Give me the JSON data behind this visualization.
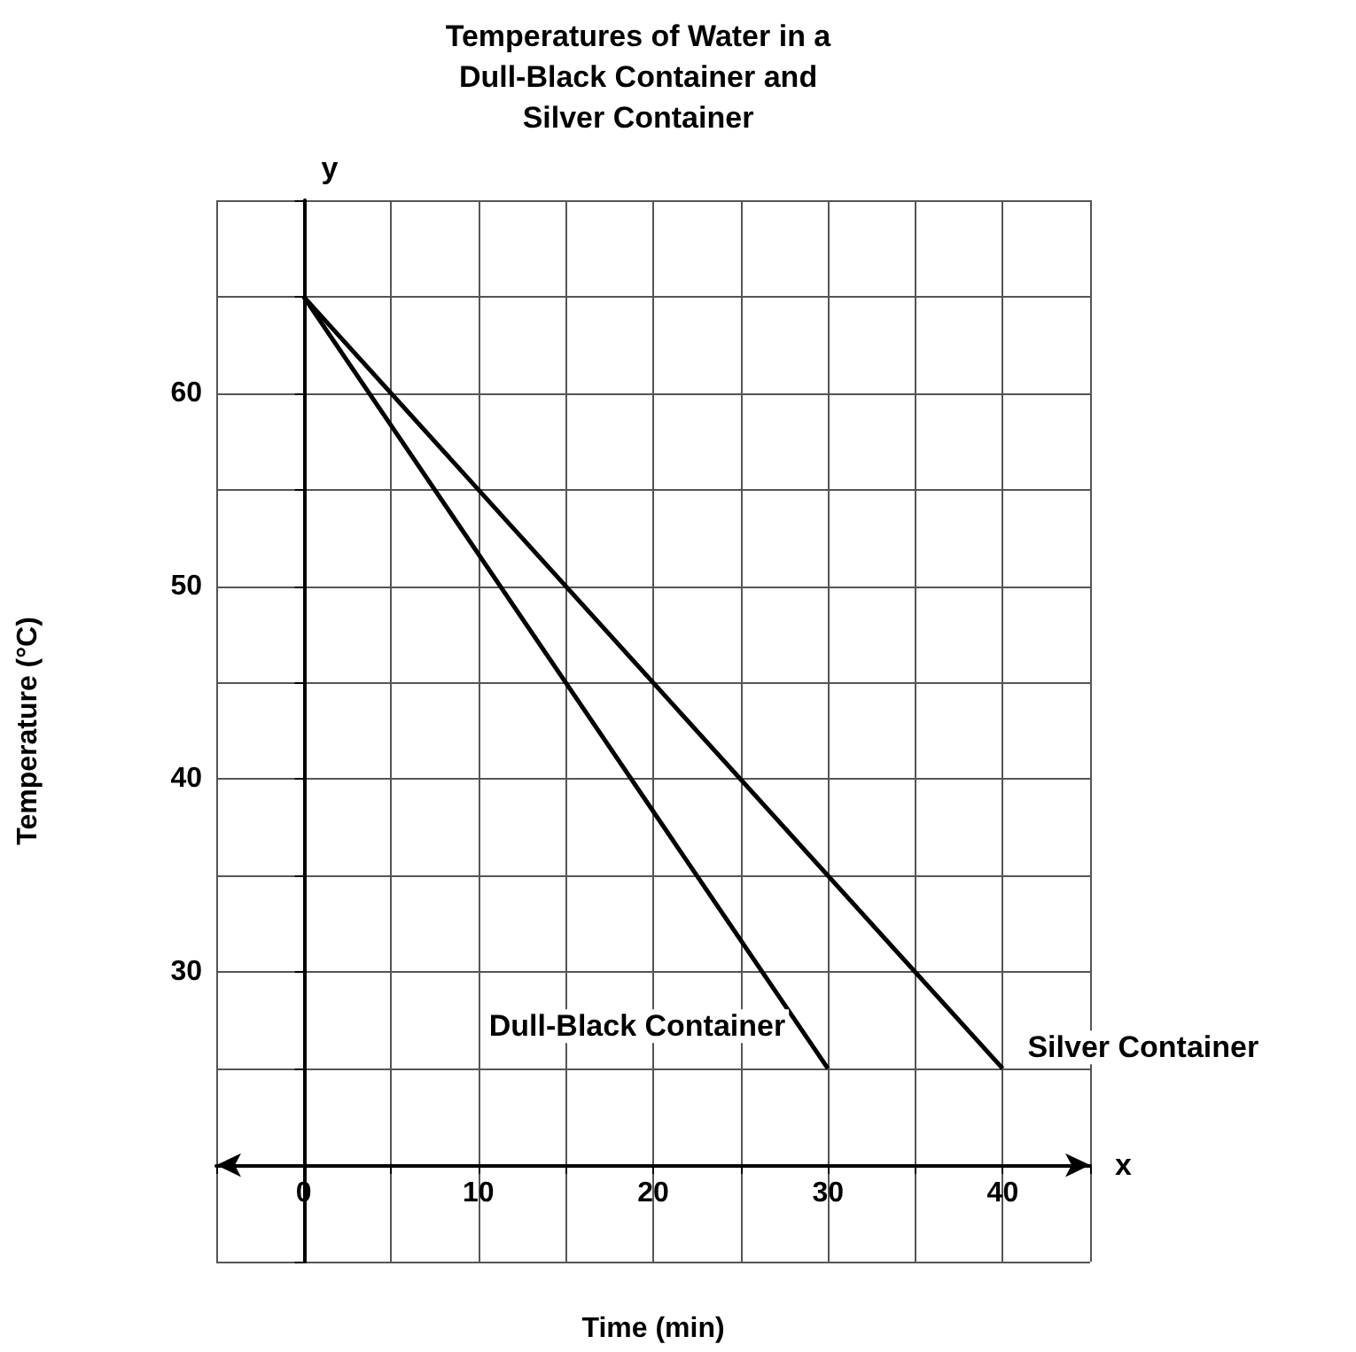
{
  "chart_data": {
    "type": "line",
    "title": "Temperatures of Water in a\nDull-Black Container and\nSilver Container",
    "xlabel": "Time (min)",
    "ylabel": "Temperature (°C)",
    "annotations": [
      "x",
      "y"
    ],
    "xlim": [
      -5,
      45
    ],
    "xticks": [
      {
        "value": -5,
        "label": null
      },
      0,
      {
        "value": 5,
        "label": null
      },
      10,
      {
        "value": 15,
        "label": null
      },
      20,
      {
        "value": 25,
        "label": null
      },
      30,
      {
        "value": 35,
        "label": null
      },
      40,
      {
        "value": 45,
        "label": null
      }
    ],
    "ylim": [
      15,
      70
    ],
    "yticks": [
      {
        "value": 15,
        "label": null
      },
      {
        "value": 20,
        "label": null
      },
      {
        "value": 25,
        "label": null
      },
      30,
      {
        "value": 35,
        "label": null
      },
      40,
      {
        "value": 45,
        "label": null
      },
      50,
      {
        "value": 55,
        "label": null
      },
      60,
      {
        "value": 65,
        "label": null
      },
      {
        "value": 70,
        "label": null
      }
    ],
    "series": [
      {
        "name": "Dull-Black Container",
        "color": "#000000",
        "x": [
          0,
          30
        ],
        "values": [
          65,
          25
        ]
      },
      {
        "name": "Silver Container",
        "color": "#000000",
        "x": [
          0,
          40
        ],
        "values": [
          65,
          25
        ]
      }
    ],
    "grid": true,
    "legend": false,
    "marker": "none",
    "line_style": "solid"
  }
}
